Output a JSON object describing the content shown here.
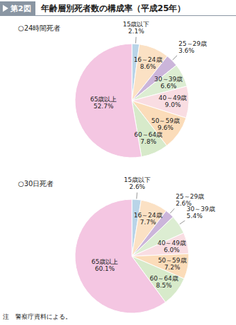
{
  "figure_number": "第2図",
  "figure_title": "年齢層別死者数の構成率（平成25年）",
  "note": "注　警察庁資料による。",
  "chart_data": [
    {
      "type": "pie",
      "title": "○24時間死者",
      "categories": [
        "15歳以下",
        "16～24歳",
        "25～29歳",
        "30～39歳",
        "40～49歳",
        "50～59歳",
        "60～64歳",
        "65歳以上"
      ],
      "values": [
        2.1,
        8.6,
        3.6,
        6.6,
        9.0,
        9.6,
        7.8,
        52.7
      ],
      "value_labels": [
        "2.1%",
        "8.6%",
        "3.6%",
        "6.6%",
        "9.0%",
        "9.6%",
        "7.8%",
        "52.7%"
      ],
      "colors": [
        "#b9d4e8",
        "#fbe1c4",
        "#cbb5da",
        "#dcedd2",
        "#f9dde2",
        "#fbdcb9",
        "#d7eaca",
        "#f4c6e2"
      ],
      "data_labels": true
    },
    {
      "type": "pie",
      "title": "○30日死者",
      "categories": [
        "15歳以下",
        "16～24歳",
        "25～29歳",
        "30～39歳",
        "40～49歳",
        "50～59歳",
        "60～64歳",
        "65歳以上"
      ],
      "values": [
        2.6,
        7.7,
        2.6,
        5.4,
        6.0,
        7.2,
        8.5,
        60.1
      ],
      "value_labels": [
        "2.6%",
        "7.7%",
        "2.6%",
        "5.4%",
        "6.0%",
        "7.2%",
        "8.5%",
        "60.1%"
      ],
      "colors": [
        "#b9d4e8",
        "#fbe1c4",
        "#cbb5da",
        "#dcedd2",
        "#f9dde2",
        "#fbdcb9",
        "#d7eaca",
        "#f4c6e2"
      ],
      "data_labels": true
    }
  ]
}
